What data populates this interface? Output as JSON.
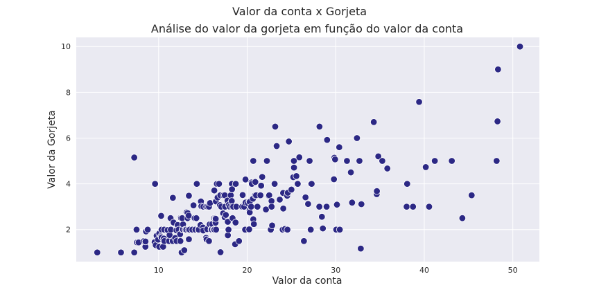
{
  "chart_data": {
    "type": "scatter",
    "suptitle": "Valor da conta x Gorjeta",
    "title": "Análise do valor da gorjeta em função do valor da conta",
    "xlabel": "Valor da conta",
    "ylabel": "Valor da Gorjeta",
    "xlim": [
      0.7,
      53.0
    ],
    "ylim": [
      0.6,
      10.4
    ],
    "xticks": [
      10,
      20,
      30,
      40,
      50
    ],
    "yticks": [
      2,
      4,
      6,
      8,
      10
    ],
    "grid": true,
    "background": "#eaeaf2",
    "point_color": "#2c2885",
    "points": [
      [
        3.07,
        1.0
      ],
      [
        5.75,
        1.0
      ],
      [
        7.25,
        1.0
      ],
      [
        7.25,
        5.15
      ],
      [
        7.51,
        2.0
      ],
      [
        7.56,
        1.44
      ],
      [
        7.74,
        1.44
      ],
      [
        8.35,
        1.5
      ],
      [
        8.51,
        1.25
      ],
      [
        8.52,
        1.48
      ],
      [
        8.58,
        1.92
      ],
      [
        8.77,
        2.0
      ],
      [
        9.55,
        1.45
      ],
      [
        9.6,
        4.0
      ],
      [
        9.68,
        1.32
      ],
      [
        9.78,
        1.73
      ],
      [
        9.94,
        1.56
      ],
      [
        10.07,
        1.25
      ],
      [
        10.07,
        1.83
      ],
      [
        10.27,
        1.71
      ],
      [
        10.29,
        2.6
      ],
      [
        10.33,
        1.67
      ],
      [
        10.33,
        2.0
      ],
      [
        10.34,
        1.66
      ],
      [
        10.34,
        2.0
      ],
      [
        10.51,
        1.25
      ],
      [
        10.59,
        1.61
      ],
      [
        10.63,
        2.0
      ],
      [
        10.65,
        1.5
      ],
      [
        11.02,
        1.98
      ],
      [
        11.17,
        1.5
      ],
      [
        11.24,
        1.76
      ],
      [
        11.35,
        2.5
      ],
      [
        11.38,
        2.0
      ],
      [
        11.59,
        1.5
      ],
      [
        11.61,
        3.39
      ],
      [
        11.69,
        2.31
      ],
      [
        11.87,
        1.63
      ],
      [
        12.02,
        1.97
      ],
      [
        12.03,
        1.5
      ],
      [
        12.16,
        2.2
      ],
      [
        12.26,
        2.0
      ],
      [
        12.43,
        1.8
      ],
      [
        12.46,
        1.5
      ],
      [
        12.48,
        2.52
      ],
      [
        12.54,
        2.5
      ],
      [
        12.6,
        1.0
      ],
      [
        12.66,
        2.5
      ],
      [
        12.69,
        2.0
      ],
      [
        12.74,
        2.01
      ],
      [
        12.76,
        2.23
      ],
      [
        12.9,
        1.1
      ],
      [
        13.0,
        2.0
      ],
      [
        13.03,
        2.0
      ],
      [
        13.13,
        2.0
      ],
      [
        13.16,
        2.75
      ],
      [
        13.27,
        2.5
      ],
      [
        13.28,
        2.72
      ],
      [
        13.37,
        2.0
      ],
      [
        13.39,
        2.61
      ],
      [
        13.42,
        1.58
      ],
      [
        13.42,
        3.48
      ],
      [
        13.51,
        2.0
      ],
      [
        13.81,
        2.0
      ],
      [
        13.94,
        3.06
      ],
      [
        14.07,
        2.5
      ],
      [
        14.15,
        2.0
      ],
      [
        14.26,
        2.5
      ],
      [
        14.31,
        4.0
      ],
      [
        14.48,
        2.0
      ],
      [
        14.52,
        2.0
      ],
      [
        14.73,
        2.2
      ],
      [
        14.78,
        3.23
      ],
      [
        14.83,
        3.02
      ],
      [
        15.01,
        2.09
      ],
      [
        15.04,
        1.96
      ],
      [
        15.06,
        3.0
      ],
      [
        15.36,
        1.64
      ],
      [
        15.38,
        3.0
      ],
      [
        15.42,
        1.57
      ],
      [
        15.48,
        2.02
      ],
      [
        15.53,
        3.0
      ],
      [
        15.69,
        1.5
      ],
      [
        15.69,
        3.0
      ],
      [
        15.77,
        2.23
      ],
      [
        15.81,
        3.16
      ],
      [
        15.95,
        2.0
      ],
      [
        15.98,
        2.03
      ],
      [
        16.0,
        2.0
      ],
      [
        16.04,
        2.24
      ],
      [
        16.21,
        2.0
      ],
      [
        16.27,
        2.5
      ],
      [
        16.29,
        3.71
      ],
      [
        16.31,
        2.0
      ],
      [
        16.4,
        2.5
      ],
      [
        16.43,
        2.3
      ],
      [
        16.45,
        2.47
      ],
      [
        16.47,
        3.23
      ],
      [
        16.49,
        2.0
      ],
      [
        16.58,
        4.0
      ],
      [
        16.66,
        3.4
      ],
      [
        16.82,
        4.0
      ],
      [
        16.93,
        3.07
      ],
      [
        16.97,
        3.5
      ],
      [
        16.99,
        1.01
      ],
      [
        17.07,
        3.0
      ],
      [
        17.29,
        2.71
      ],
      [
        17.31,
        3.5
      ],
      [
        17.46,
        2.54
      ],
      [
        17.47,
        3.5
      ],
      [
        17.51,
        3.0
      ],
      [
        17.59,
        2.64
      ],
      [
        17.78,
        3.27
      ],
      [
        17.81,
        2.34
      ],
      [
        17.82,
        1.75
      ],
      [
        17.89,
        2.0
      ],
      [
        17.92,
        3.08
      ],
      [
        18.04,
        3.0
      ],
      [
        18.15,
        3.5
      ],
      [
        18.24,
        3.76
      ],
      [
        18.26,
        3.25
      ],
      [
        18.28,
        4.0
      ],
      [
        18.29,
        3.0
      ],
      [
        18.29,
        3.76
      ],
      [
        18.35,
        2.5
      ],
      [
        18.43,
        3.0
      ],
      [
        18.64,
        1.36
      ],
      [
        18.69,
        2.31
      ],
      [
        18.71,
        4.0
      ],
      [
        18.78,
        3.0
      ],
      [
        19.08,
        1.5
      ],
      [
        19.44,
        3.0
      ],
      [
        19.49,
        3.51
      ],
      [
        19.65,
        3.0
      ],
      [
        19.77,
        2.0
      ],
      [
        19.81,
        4.19
      ],
      [
        19.82,
        3.18
      ],
      [
        20.08,
        3.15
      ],
      [
        20.23,
        2.01
      ],
      [
        20.27,
        2.83
      ],
      [
        20.29,
        2.75
      ],
      [
        20.29,
        3.21
      ],
      [
        20.45,
        3.0
      ],
      [
        20.49,
        4.06
      ],
      [
        20.53,
        4.0
      ],
      [
        20.65,
        3.35
      ],
      [
        20.69,
        2.45
      ],
      [
        20.69,
        5.0
      ],
      [
        20.76,
        2.24
      ],
      [
        20.9,
        3.5
      ],
      [
        20.92,
        4.08
      ],
      [
        21.01,
        3.5
      ],
      [
        21.16,
        3.0
      ],
      [
        21.5,
        3.5
      ],
      [
        21.58,
        3.92
      ],
      [
        21.7,
        4.3
      ],
      [
        22.12,
        2.88
      ],
      [
        22.23,
        5.0
      ],
      [
        22.42,
        3.48
      ],
      [
        22.49,
        3.5
      ],
      [
        22.67,
        2.0
      ],
      [
        22.75,
        3.25
      ],
      [
        22.76,
        3.0
      ],
      [
        22.82,
        2.18
      ],
      [
        23.1,
        4.0
      ],
      [
        23.17,
        6.5
      ],
      [
        23.33,
        5.65
      ],
      [
        23.68,
        3.31
      ],
      [
        24.01,
        2.0
      ],
      [
        24.06,
        3.6
      ],
      [
        24.08,
        2.92
      ],
      [
        24.27,
        2.03
      ],
      [
        24.52,
        3.48
      ],
      [
        24.55,
        2.0
      ],
      [
        24.59,
        3.61
      ],
      [
        24.71,
        5.85
      ],
      [
        25.0,
        3.75
      ],
      [
        25.21,
        4.29
      ],
      [
        25.28,
        5.0
      ],
      [
        25.29,
        4.71
      ],
      [
        25.56,
        4.34
      ],
      [
        25.71,
        4.0
      ],
      [
        25.89,
        5.16
      ],
      [
        26.41,
        1.5
      ],
      [
        26.59,
        3.41
      ],
      [
        26.86,
        3.14
      ],
      [
        26.88,
        3.12
      ],
      [
        27.05,
        5.0
      ],
      [
        27.18,
        2.0
      ],
      [
        27.2,
        4.0
      ],
      [
        27.28,
        4.0
      ],
      [
        28.15,
        3.0
      ],
      [
        28.17,
        6.5
      ],
      [
        28.44,
        2.56
      ],
      [
        28.55,
        2.05
      ],
      [
        28.97,
        3.0
      ],
      [
        29.03,
        5.92
      ],
      [
        29.8,
        4.2
      ],
      [
        29.85,
        5.14
      ],
      [
        29.93,
        5.07
      ],
      [
        30.06,
        2.0
      ],
      [
        30.14,
        3.09
      ],
      [
        30.4,
        5.6
      ],
      [
        30.46,
        2.0
      ],
      [
        31.27,
        5.0
      ],
      [
        31.71,
        4.5
      ],
      [
        31.85,
        3.18
      ],
      [
        32.4,
        6.0
      ],
      [
        32.68,
        5.0
      ],
      [
        32.83,
        1.17
      ],
      [
        32.9,
        3.11
      ],
      [
        34.3,
        6.7
      ],
      [
        34.63,
        3.55
      ],
      [
        34.65,
        3.68
      ],
      [
        34.81,
        5.2
      ],
      [
        35.26,
        5.0
      ],
      [
        35.83,
        4.67
      ],
      [
        38.01,
        3.0
      ],
      [
        38.07,
        4.0
      ],
      [
        38.73,
        3.0
      ],
      [
        39.42,
        7.58
      ],
      [
        40.17,
        4.73
      ],
      [
        40.55,
        3.0
      ],
      [
        41.19,
        5.0
      ],
      [
        43.11,
        5.0
      ],
      [
        44.3,
        2.5
      ],
      [
        45.35,
        3.5
      ],
      [
        48.17,
        5.0
      ],
      [
        48.27,
        6.73
      ],
      [
        48.33,
        9.0
      ],
      [
        50.81,
        10.0
      ]
    ]
  }
}
